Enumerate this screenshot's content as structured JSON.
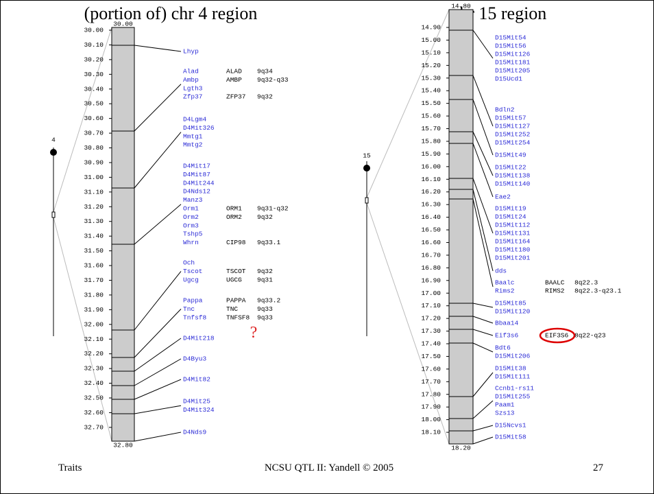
{
  "slide": {
    "footer_left": "Traits",
    "footer_center": "NCSU QTL II: Yandell © 2005",
    "page_number": "27"
  },
  "left_map": {
    "title": "(portion of) chr 4 region",
    "chromosome": "4",
    "start": "30.00",
    "end": "32.80",
    "scale": [
      "30.00",
      "30.10",
      "30.20",
      "30.30",
      "30.40",
      "30.50",
      "30.60",
      "30.70",
      "30.80",
      "30.90",
      "31.00",
      "31.10",
      "31.20",
      "31.30",
      "31.40",
      "31.50",
      "31.60",
      "31.70",
      "31.80",
      "31.90",
      "32.00",
      "32.10",
      "32.20",
      "32.30",
      "32.40",
      "32.50",
      "32.60",
      "32.70"
    ],
    "groups": [
      [
        {
          "symbol": "Lhyp"
        }
      ],
      [
        {
          "symbol": "Alad",
          "human": "ALAD",
          "band": "9q34"
        },
        {
          "symbol": "Ambp",
          "human": "AMBP",
          "band": "9q32-q33"
        },
        {
          "symbol": "Lgth3"
        },
        {
          "symbol": "Zfp37",
          "human": "ZFP37",
          "band": "9q32"
        }
      ],
      [
        {
          "symbol": "D4Lgm4"
        },
        {
          "symbol": "D4Mit326"
        },
        {
          "symbol": "Mmtg1"
        },
        {
          "symbol": "Mmtg2"
        }
      ],
      [
        {
          "symbol": "D4Mit17"
        },
        {
          "symbol": "D4Mit87"
        },
        {
          "symbol": "D4Mit244"
        },
        {
          "symbol": "D4Nds12"
        },
        {
          "symbol": "Manz3"
        },
        {
          "symbol": "Orm1",
          "human": "ORM1",
          "band": "9q31-q32"
        },
        {
          "symbol": "Orm2",
          "human": "ORM2",
          "band": "9q32"
        },
        {
          "symbol": "Orm3"
        },
        {
          "symbol": "Tshp5"
        },
        {
          "symbol": "Whrn",
          "human": "CIP98",
          "band": "9q33.1"
        }
      ],
      [
        {
          "symbol": "Och"
        },
        {
          "symbol": "Tscot",
          "human": "TSCOT",
          "band": "9q32"
        },
        {
          "symbol": "Ugcg",
          "human": "UGCG",
          "band": "9q31"
        }
      ],
      [
        {
          "symbol": "Pappa",
          "human": "PAPPA",
          "band": "9q33.2"
        },
        {
          "symbol": "Tnc",
          "human": "TNC",
          "band": "9q33"
        },
        {
          "symbol": "Tnfsf8",
          "human": "TNFSF8",
          "band": "9q33"
        }
      ],
      [
        {
          "symbol": "D4Mit218"
        }
      ],
      [
        {
          "symbol": "D4Byu3"
        }
      ],
      [
        {
          "symbol": "D4Mit82"
        }
      ],
      [
        {
          "symbol": "D4Mit25"
        },
        {
          "symbol": "D4Mit324"
        }
      ],
      [
        {
          "symbol": "D4Nds9"
        }
      ]
    ],
    "annotation": "?"
  },
  "right_map": {
    "title": "chr 15 region",
    "chromosome": "15",
    "start": "14.80",
    "end": "18.20",
    "scale": [
      "14.90",
      "15.00",
      "15.10",
      "15.20",
      "15.30",
      "15.40",
      "15.50",
      "15.60",
      "15.70",
      "15.80",
      "15.90",
      "16.00",
      "16.10",
      "16.20",
      "16.30",
      "16.40",
      "16.50",
      "16.60",
      "16.70",
      "16.80",
      "16.90",
      "17.00",
      "17.10",
      "17.20",
      "17.30",
      "17.40",
      "17.50",
      "17.60",
      "17.70",
      "17.80",
      "17.90",
      "18.00",
      "18.10"
    ],
    "groups": [
      [
        {
          "symbol": "D15Mit54"
        },
        {
          "symbol": "D15Mit56"
        },
        {
          "symbol": "D15Mit126"
        },
        {
          "symbol": "D15Mit181"
        },
        {
          "symbol": "D15Mit205"
        },
        {
          "symbol": "D15Ucd1"
        }
      ],
      [
        {
          "symbol": "Bdln2"
        },
        {
          "symbol": "D15Mit57"
        },
        {
          "symbol": "D15Mit127"
        },
        {
          "symbol": "D15Mit252"
        },
        {
          "symbol": "D15Mit254"
        }
      ],
      [
        {
          "symbol": "D15Mit49"
        }
      ],
      [
        {
          "symbol": "D15Mit22"
        },
        {
          "symbol": "D15Mit138"
        },
        {
          "symbol": "D15Mit140"
        }
      ],
      [
        {
          "symbol": "Eae2"
        }
      ],
      [
        {
          "symbol": "D15Mit19"
        },
        {
          "symbol": "D15Mit24"
        },
        {
          "symbol": "D15Mit112"
        },
        {
          "symbol": "D15Mit131"
        },
        {
          "symbol": "D15Mit164"
        },
        {
          "symbol": "D15Mit180"
        },
        {
          "symbol": "D15Mit201"
        }
      ],
      [
        {
          "symbol": "dds"
        }
      ],
      [
        {
          "symbol": "Baalc",
          "human": "BAALC",
          "band": "8q22.3"
        },
        {
          "symbol": "Rims2",
          "human": "RIMS2",
          "band": "8q22.3-q23.1"
        }
      ],
      [
        {
          "symbol": "D15Mit85"
        },
        {
          "symbol": "D15Mit120"
        }
      ],
      [
        {
          "symbol": "Bbaa14"
        }
      ],
      [
        {
          "symbol": "Eif3s6",
          "human": "EIF3S6",
          "band": "8q22-q23",
          "circled": true
        }
      ],
      [
        {
          "symbol": "Bdt6"
        },
        {
          "symbol": "D15Mit206"
        }
      ],
      [
        {
          "symbol": "D15Mit38"
        },
        {
          "symbol": "D15Mit111"
        }
      ],
      [
        {
          "symbol": "Ccnb1-rs11"
        },
        {
          "symbol": "D15Mit255"
        },
        {
          "symbol": "Paam1"
        },
        {
          "symbol": "Szs13"
        }
      ],
      [
        {
          "symbol": "D15Ncvs1"
        }
      ],
      [
        {
          "symbol": "D15Mit58"
        }
      ]
    ]
  }
}
